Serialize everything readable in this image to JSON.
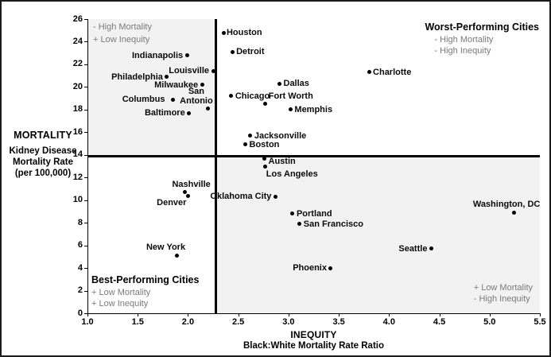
{
  "figure": {
    "y_title": "MORTALITY",
    "y_sub_lines": [
      "Kidney Disease",
      "Mortality Rate",
      "(per 100,000)"
    ],
    "x_title": "INEQUITY",
    "x_subtitle": "Black:White Mortality Rate Ratio"
  },
  "quadrants": {
    "top_left": {
      "lines": [
        "- High Mortality",
        "+ Low Inequity"
      ]
    },
    "top_right": {
      "title": "Worst-Performing Cities",
      "lines": [
        "- High Mortality",
        "- High Inequity"
      ]
    },
    "bottom_left": {
      "title": "Best-Performing Cities",
      "lines": [
        "+ Low Mortality",
        "+ Low Inequity"
      ]
    },
    "bottom_right": {
      "lines": [
        "+ Low Mortality",
        "- High Inequity"
      ]
    }
  },
  "colors": {
    "dot": "#000000",
    "gray_text": "#7a7a7a",
    "quadrant_shade": "#f2f2f2",
    "divider": "#000000"
  },
  "chart_data": {
    "type": "scatter",
    "title": "",
    "xlabel": "INEQUITY — Black:White Mortality Rate Ratio",
    "ylabel": "MORTALITY — Kidney Disease Mortality Rate (per 100,000)",
    "xlim": [
      1.0,
      5.5
    ],
    "ylim": [
      0,
      26
    ],
    "x_ticks": [
      1.0,
      1.5,
      2.0,
      2.5,
      3.0,
      3.5,
      4.0,
      4.5,
      5.0,
      5.5
    ],
    "y_ticks": [
      0,
      2,
      4,
      6,
      8,
      10,
      12,
      14,
      16,
      18,
      20,
      22,
      24,
      26
    ],
    "divider_x": 2.28,
    "divider_y": 13.85,
    "grid": false,
    "points": [
      {
        "city": "Houston",
        "x": 2.36,
        "y": 24.8,
        "label_pos": "right",
        "dx": -2
      },
      {
        "city": "Detroit",
        "x": 2.44,
        "y": 23.1,
        "label_pos": "right"
      },
      {
        "city": "Indianapolis",
        "x": 1.99,
        "y": 22.8,
        "label_pos": "left"
      },
      {
        "city": "Louisville",
        "x": 2.25,
        "y": 21.4,
        "label_pos": "left"
      },
      {
        "city": "Charlotte",
        "x": 3.8,
        "y": 21.3,
        "label_pos": "right"
      },
      {
        "city": "Philadelphia",
        "x": 1.79,
        "y": 20.9,
        "label_pos": "left"
      },
      {
        "city": "Dallas",
        "x": 2.91,
        "y": 20.3,
        "label_pos": "right"
      },
      {
        "city": "Milwaukee",
        "x": 2.14,
        "y": 20.2,
        "label_pos": "left"
      },
      {
        "city": "Chicago",
        "x": 2.43,
        "y": 19.2,
        "label_pos": "right"
      },
      {
        "city": "Columbus",
        "x": 1.85,
        "y": 18.9,
        "label_pos": "left",
        "dx": -5
      },
      {
        "city": "Fort Worth",
        "x": 2.77,
        "y": 18.5,
        "label_pos": "above-right"
      },
      {
        "city": "San Antonio",
        "x": 2.2,
        "y": 18.1,
        "label_pos": "above-left",
        "label_lines": [
          "San",
          "Antonio"
        ]
      },
      {
        "city": "Memphis",
        "x": 3.02,
        "y": 18.0,
        "label_pos": "right"
      },
      {
        "city": "Baltimore",
        "x": 2.01,
        "y": 17.7,
        "label_pos": "left"
      },
      {
        "city": "Jacksonville",
        "x": 2.62,
        "y": 15.7,
        "label_pos": "right"
      },
      {
        "city": "Boston",
        "x": 2.57,
        "y": 14.9,
        "label_pos": "right"
      },
      {
        "city": "Austin",
        "x": 2.76,
        "y": 13.7,
        "label_pos": "right",
        "dy": 4
      },
      {
        "city": "Los Angeles",
        "x": 2.77,
        "y": 13.0,
        "label_pos": "below-right"
      },
      {
        "city": "Nashville",
        "x": 1.97,
        "y": 10.7,
        "label_pos": "above",
        "dx": 8
      },
      {
        "city": "Denver",
        "x": 2.0,
        "y": 10.4,
        "label_pos": "below-left"
      },
      {
        "city": "Oklahoma City",
        "x": 2.87,
        "y": 10.3,
        "label_pos": "left"
      },
      {
        "city": "Portland",
        "x": 3.04,
        "y": 8.8,
        "label_pos": "right"
      },
      {
        "city": "Washington, DC",
        "x": 5.24,
        "y": 8.9,
        "label_pos": "above",
        "dx": -9
      },
      {
        "city": "San Francisco",
        "x": 3.11,
        "y": 7.9,
        "label_pos": "right"
      },
      {
        "city": "Seattle",
        "x": 4.42,
        "y": 5.7,
        "label_pos": "left"
      },
      {
        "city": "New York",
        "x": 1.89,
        "y": 5.1,
        "label_pos": "above",
        "dx": -14
      },
      {
        "city": "Phoenix",
        "x": 3.42,
        "y": 4.0,
        "label_pos": "left"
      }
    ]
  }
}
